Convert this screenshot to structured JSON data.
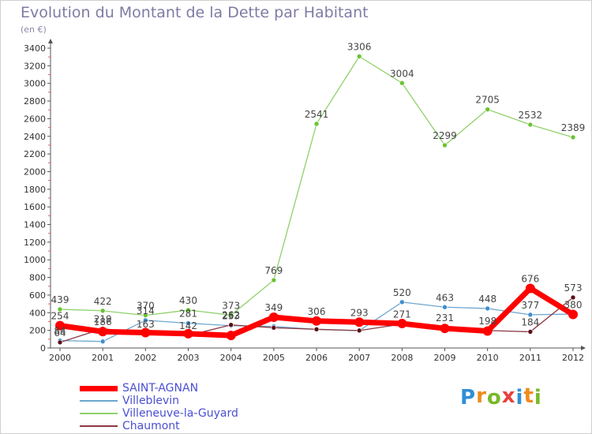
{
  "title": "Evolution du Montant de la Dette par Habitant",
  "unit": "(en €)",
  "logo": {
    "letters": [
      "P",
      "r",
      "o",
      "x",
      "i",
      "t",
      "i"
    ],
    "colors": [
      "#2f8fd8",
      "#f08a1c",
      "#79b927",
      "#e8403d",
      "#2f8fd8",
      "#f08a1c",
      "#79b927"
    ]
  },
  "chart_data": {
    "type": "line",
    "x": [
      "2000",
      "2001",
      "2002",
      "2003",
      "2004",
      "2005",
      "2006",
      "2007",
      "2008",
      "2009",
      "2010",
      "2011",
      "2012"
    ],
    "ylim": [
      0,
      3400
    ],
    "yticks": [
      0,
      200,
      400,
      600,
      800,
      1000,
      1200,
      1400,
      1600,
      1800,
      2000,
      2200,
      2400,
      2600,
      2800,
      3000,
      3200,
      3400
    ],
    "grid": false,
    "legend_position": "bottom-left",
    "series": [
      {
        "name": "Villeneuve-la-Guyard",
        "color": "#8fd16b",
        "marker": "#69c332",
        "width": 1.3,
        "values": [
          439,
          422,
          370,
          430,
          373,
          769,
          2541,
          3306,
          3004,
          2299,
          2705,
          2532,
          2389
        ],
        "labels": [
          "439",
          "422",
          "370",
          "430",
          "373",
          "769",
          "2541",
          "3306",
          "3004",
          "2299",
          "2705",
          "2532",
          "2389"
        ]
      },
      {
        "name": "Villeblevin",
        "color": "#6fa6cf",
        "marker": "#3d8ed0",
        "width": 1.3,
        "values": [
          84,
          74,
          314,
          281,
          253,
          245,
          210,
          196,
          520,
          463,
          448,
          377,
          384
        ],
        "labels": [
          "84",
          "",
          "314",
          "281",
          "253",
          "",
          "",
          "",
          "520",
          "463",
          "448",
          "377",
          ""
        ]
      },
      {
        "name": "Chaumont",
        "color": "#8b3a45",
        "marker": "#5a1017",
        "width": 1.3,
        "values": [
          64,
          219,
          163,
          142,
          262,
          230,
          212,
          198,
          271,
          231,
          198,
          184,
          573
        ],
        "labels": [
          "64",
          "219",
          "163",
          "142",
          "262",
          "",
          "",
          "",
          "271",
          "231",
          "198",
          "184",
          "573"
        ]
      },
      {
        "name": "SAINT-AGNAN",
        "color": "#ff0000",
        "marker": "#ff0000",
        "width": 7,
        "values": [
          254,
          186,
          174,
          162,
          142,
          349,
          306,
          293,
          277,
          222,
          192,
          676,
          380
        ],
        "labels": [
          "254",
          "186",
          "",
          "",
          "",
          "349",
          "306",
          "293",
          "",
          "",
          "",
          "676",
          "380"
        ]
      }
    ],
    "legend_order": [
      "SAINT-AGNAN",
      "Villeblevin",
      "Villeneuve-la-Guyard",
      "Chaumont"
    ]
  }
}
